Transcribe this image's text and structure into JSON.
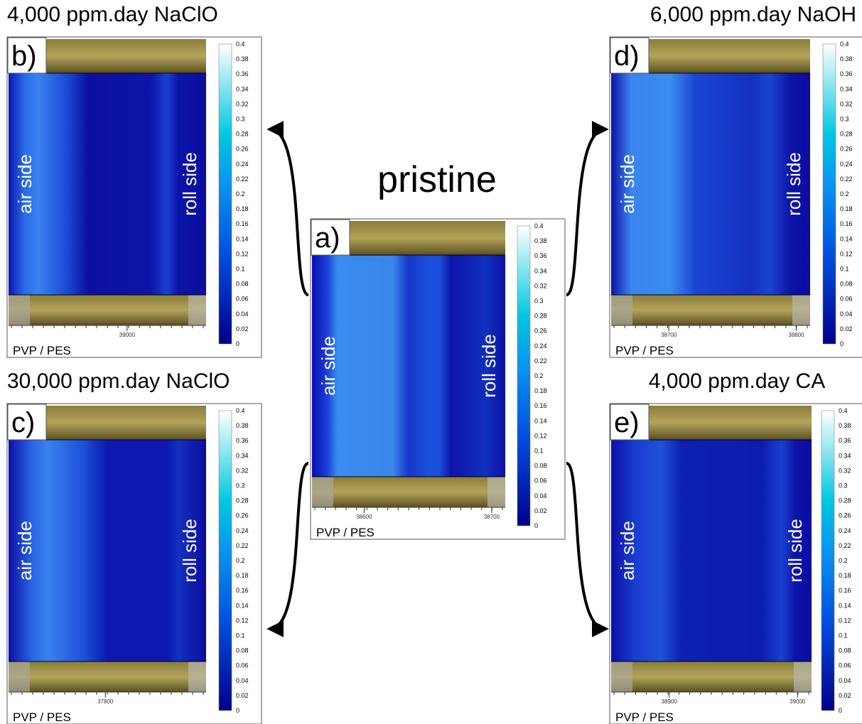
{
  "colorbar_ticks": [
    "0.4",
    "0.38",
    "0.36",
    "0.34",
    "0.32",
    "0.3",
    "0.28",
    "0.26",
    "0.24",
    "0.22",
    "0.2",
    "0.18",
    "0.16",
    "0.14",
    "0.12",
    "0.1",
    "0.08",
    "0.06",
    "0.04",
    "0.02",
    "0"
  ],
  "panels": [
    {
      "label": "a)",
      "title": "pristine",
      "x_ticks": [
        "38600",
        "38700"
      ],
      "axis_label": "PVP / PES",
      "left_label": "air side",
      "right_label": "roll side"
    },
    {
      "label": "b)",
      "title": "4,000 ppm.day NaClO",
      "x_ticks": [
        "39000"
      ],
      "axis_label": "PVP / PES",
      "left_label": "air side",
      "right_label": "roll side"
    },
    {
      "label": "c)",
      "title": "30,000 ppm.day NaClO",
      "x_ticks": [
        "37800"
      ],
      "axis_label": "PVP / PES",
      "left_label": "air side",
      "right_label": "roll side"
    },
    {
      "label": "d)",
      "title": "6,000 ppm.day NaOH",
      "x_ticks": [
        "38700",
        "38800"
      ],
      "axis_label": "PVP / PES",
      "left_label": "air side",
      "right_label": "roll side"
    },
    {
      "label": "e)",
      "title": "4,000 ppm.day CA",
      "x_ticks": [
        "38900",
        "39000"
      ],
      "axis_label": "PVP / PES",
      "left_label": "air side",
      "right_label": "roll side"
    }
  ]
}
